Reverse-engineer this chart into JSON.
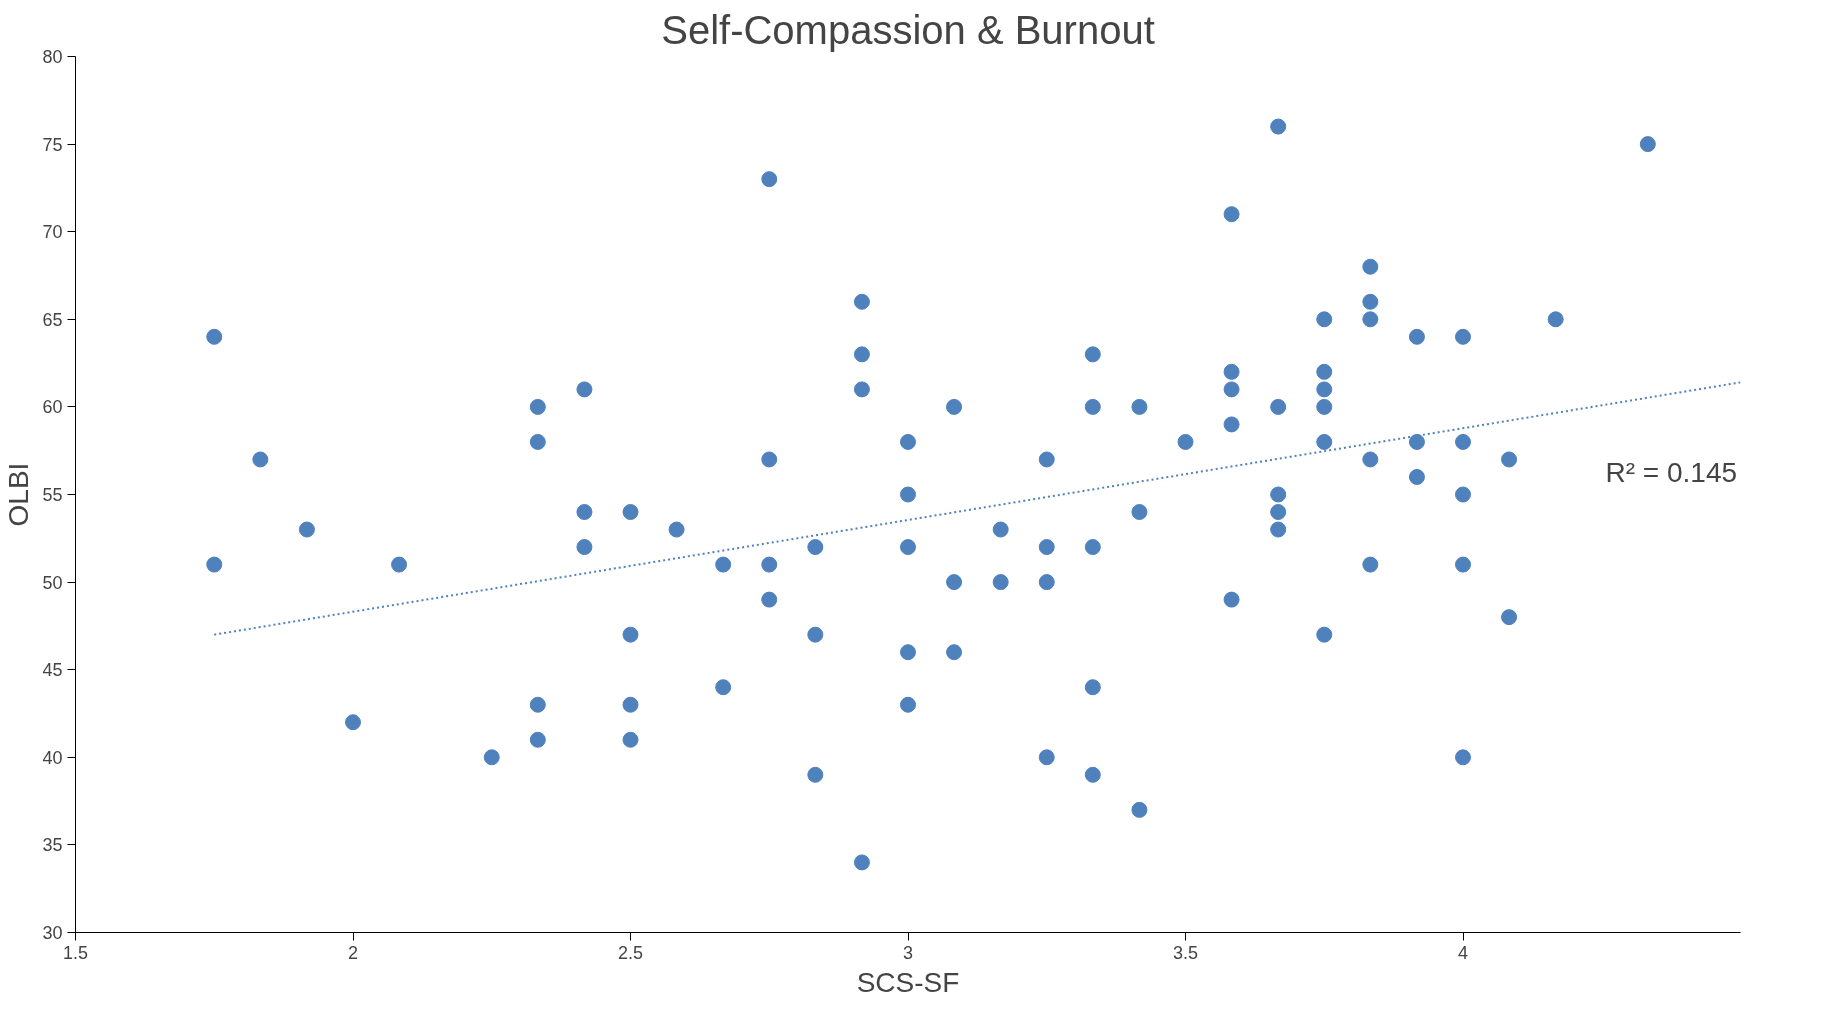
{
  "chart_data": {
    "type": "scatter",
    "title": "Self-Compassion & Burnout",
    "xlabel": "SCS-SF",
    "ylabel": "OLBI",
    "xlim": [
      1.5,
      4.5
    ],
    "xticks": [
      1.5,
      2,
      2.5,
      3,
      3.5,
      4
    ],
    "ylim": [
      30,
      80
    ],
    "yticks": [
      30,
      35,
      40,
      45,
      50,
      55,
      60,
      65,
      70,
      75,
      80
    ],
    "grid": false,
    "marker": "circle",
    "series": [
      {
        "color": "#4f81bd",
        "x": [
          1.75,
          1.75,
          1.833,
          1.917,
          2,
          2.083,
          2.25,
          2.333,
          2.333,
          2.333,
          2.333,
          2.417,
          2.417,
          2.417,
          2.5,
          2.5,
          2.5,
          2.5,
          2.583,
          2.667,
          2.667,
          2.75,
          2.75,
          2.75,
          2.75,
          2.833,
          2.833,
          2.833,
          2.917,
          2.917,
          2.917,
          2.917,
          3,
          3,
          3,
          3,
          3,
          3.083,
          3.083,
          3.083,
          3.167,
          3.167,
          3.25,
          3.25,
          3.25,
          3.25,
          3.333,
          3.333,
          3.333,
          3.333,
          3.333,
          3.417,
          3.417,
          3.417,
          3.5,
          3.583,
          3.583,
          3.583,
          3.583,
          3.583,
          3.667,
          3.667,
          3.667,
          3.667,
          3.667,
          3.75,
          3.75,
          3.75,
          3.75,
          3.75,
          3.75,
          3.833,
          3.833,
          3.833,
          3.833,
          3.833,
          3.917,
          3.917,
          3.917,
          4,
          4,
          4,
          4,
          4,
          4.083,
          4.083,
          4.167,
          4.333
        ],
        "values": [
          64,
          51,
          57,
          53,
          42,
          51,
          40,
          60,
          58,
          43,
          41,
          61,
          54,
          52,
          54,
          47,
          43,
          41,
          53,
          51,
          44,
          73,
          57,
          51,
          49,
          52,
          47,
          39,
          66,
          63,
          61,
          34,
          58,
          55,
          52,
          46,
          43,
          60,
          50,
          46,
          53,
          50,
          57,
          52,
          50,
          40,
          63,
          60,
          52,
          44,
          39,
          60,
          54,
          37,
          58,
          71,
          62,
          61,
          59,
          49,
          76,
          60,
          55,
          54,
          53,
          65,
          62,
          61,
          60,
          58,
          47,
          68,
          66,
          65,
          57,
          51,
          64,
          58,
          56,
          64,
          58,
          55,
          51,
          40,
          57,
          48,
          65,
          75
        ]
      },
      {
        "type": "line",
        "color": "#4f81bd",
        "line_style": "dotted",
        "marker": "none",
        "x": [
          1.75,
          4.5
        ],
        "values": [
          47.0,
          61.4
        ]
      }
    ],
    "annotations": [
      "R² = 0.145"
    ]
  }
}
